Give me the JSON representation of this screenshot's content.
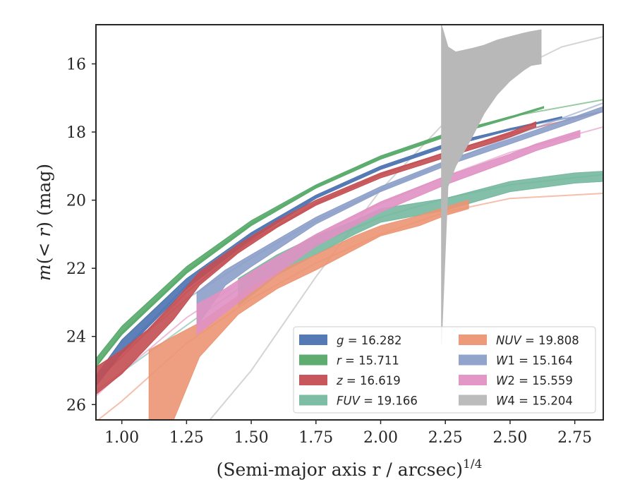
{
  "chart_data": {
    "type": "line",
    "xlabel": "(Semi-major axis r / arcsec)",
    "xlabel_exponent": "1/4",
    "ylabel": "m(<r) (mag)",
    "xlim": [
      0.9,
      2.86
    ],
    "ylim": [
      26.45,
      14.85
    ],
    "y_inverted": true,
    "grid": false,
    "legend_position": "lower right",
    "x_ticks": [
      "1.00",
      "1.25",
      "1.50",
      "1.75",
      "2.00",
      "2.25",
      "2.50",
      "2.75"
    ],
    "y_ticks": [
      "16",
      "18",
      "20",
      "22",
      "24",
      "26"
    ],
    "series": [
      {
        "label": "g = 16.282",
        "var": "g",
        "value": "16.282",
        "italic": true,
        "color": "#4c72b0",
        "band_x": [
          0.9,
          1.0,
          1.25,
          1.5,
          1.75,
          2.0,
          2.25,
          2.5,
          2.7
        ],
        "band_lo": [
          25.15,
          24.1,
          22.3,
          20.95,
          19.85,
          19.0,
          18.35,
          17.9,
          17.55
        ],
        "band_hi": [
          25.45,
          24.5,
          22.6,
          21.15,
          19.95,
          19.1,
          18.45,
          17.95,
          17.58
        ],
        "model_x": [
          0.9,
          1.0,
          1.25,
          1.5,
          1.75,
          2.0,
          2.25,
          2.5,
          2.86
        ],
        "model_y": [
          25.45,
          24.45,
          22.5,
          21.0,
          19.9,
          19.05,
          18.4,
          17.9,
          17.4
        ]
      },
      {
        "label": "r = 15.711",
        "var": "r",
        "value": "15.711",
        "italic": true,
        "color": "#55a868",
        "band_x": [
          0.9,
          1.0,
          1.25,
          1.5,
          1.75,
          2.0,
          2.25,
          2.5,
          2.63
        ],
        "band_lo": [
          24.65,
          23.7,
          21.95,
          20.6,
          19.55,
          18.7,
          18.05,
          17.55,
          17.25
        ],
        "band_hi": [
          24.9,
          23.95,
          22.15,
          20.75,
          19.65,
          18.8,
          18.15,
          17.6,
          17.3
        ],
        "model_x": [
          0.9,
          1.0,
          1.25,
          1.5,
          1.75,
          2.0,
          2.25,
          2.5,
          2.86
        ],
        "model_y": [
          24.9,
          23.9,
          22.1,
          20.7,
          19.6,
          18.75,
          18.1,
          17.55,
          17.05
        ]
      },
      {
        "label": "z = 16.619",
        "var": "z",
        "value": "16.619",
        "italic": true,
        "color": "#c44e52",
        "band_x": [
          0.9,
          1.0,
          1.1,
          1.2,
          1.3,
          1.45,
          1.6,
          1.75,
          2.0,
          2.25,
          2.4,
          2.5,
          2.6
        ],
        "band_lo": [
          24.9,
          24.4,
          23.8,
          23.0,
          22.1,
          21.3,
          20.6,
          20.0,
          19.2,
          18.6,
          18.25,
          18.0,
          17.7
        ],
        "band_hi": [
          25.7,
          25.1,
          24.3,
          23.5,
          22.5,
          21.55,
          20.8,
          20.15,
          19.35,
          18.75,
          18.4,
          18.15,
          17.85
        ],
        "model_x": [
          0.9,
          1.0,
          1.25,
          1.5,
          1.75,
          2.0,
          2.25,
          2.5,
          2.86
        ],
        "model_y": [
          25.3,
          24.6,
          22.7,
          21.2,
          20.1,
          19.25,
          18.6,
          18.05,
          17.4
        ]
      },
      {
        "label": "FUV = 19.166",
        "var": "FUV",
        "value": "19.166",
        "italic": true,
        "color": "#76b8a0",
        "band_x": [
          1.45,
          1.6,
          1.75,
          1.9,
          2.0,
          2.25,
          2.5,
          2.75,
          2.86
        ],
        "band_lo": [
          22.3,
          21.6,
          21.05,
          20.6,
          20.25,
          19.95,
          19.45,
          19.2,
          19.15
        ],
        "band_hi": [
          23.1,
          22.2,
          21.6,
          21.0,
          20.65,
          20.3,
          19.75,
          19.5,
          19.45
        ],
        "model_x": [
          0.9,
          1.1,
          1.3,
          1.5,
          1.75,
          2.0,
          2.25,
          2.5,
          2.86
        ],
        "model_y": [
          25.6,
          24.5,
          23.4,
          22.35,
          21.3,
          20.5,
          19.95,
          19.55,
          19.25
        ]
      },
      {
        "label": "NUV = 19.808",
        "var": "NUV",
        "value": "19.808",
        "italic": true,
        "color": "#ec9573",
        "band_x": [
          1.105,
          1.2,
          1.3,
          1.45,
          1.6,
          1.75,
          1.9,
          2.0,
          2.15,
          2.25,
          2.34
        ],
        "band_lo": [
          24.4,
          24.0,
          23.6,
          22.8,
          22.1,
          21.6,
          21.05,
          20.75,
          20.45,
          20.2,
          20.0
        ],
        "band_hi": [
          26.45,
          26.45,
          24.6,
          23.35,
          22.6,
          22.05,
          21.45,
          21.05,
          20.75,
          20.45,
          20.25
        ],
        "model_x": [
          0.9,
          1.0,
          1.25,
          1.5,
          1.75,
          2.0,
          2.25,
          2.5,
          2.86
        ],
        "model_y": [
          26.5,
          25.9,
          24.2,
          22.9,
          21.85,
          21.0,
          20.35,
          19.95,
          19.8
        ]
      },
      {
        "label": "W1 = 15.164",
        "var": "W",
        "sub": "1",
        "value": "15.164",
        "italic": true,
        "color": "#8c9fc9",
        "band_x": [
          1.29,
          1.4,
          1.5,
          1.75,
          2.0,
          2.25,
          2.5,
          2.75,
          2.86
        ],
        "band_lo": [
          22.7,
          22.05,
          21.6,
          20.5,
          19.6,
          18.85,
          18.2,
          17.55,
          17.25
        ],
        "band_hi": [
          23.7,
          22.5,
          21.95,
          20.7,
          19.75,
          19.0,
          18.35,
          17.7,
          17.4
        ],
        "model_x": [
          0.9,
          1.0,
          1.25,
          1.5,
          1.75,
          2.0,
          2.25,
          2.5,
          2.86
        ],
        "model_y": [
          25.2,
          24.5,
          22.9,
          21.7,
          20.6,
          19.7,
          18.9,
          18.15,
          17.15
        ]
      },
      {
        "label": "W2 = 15.559",
        "var": "W",
        "sub": "2",
        "value": "15.559",
        "italic": true,
        "color": "#e091c3",
        "band_x": [
          1.29,
          1.4,
          1.5,
          1.75,
          2.0,
          2.25,
          2.5,
          2.6,
          2.77
        ],
        "band_lo": [
          23.05,
          22.6,
          22.1,
          21.0,
          20.05,
          19.3,
          18.65,
          18.35,
          17.95
        ],
        "band_hi": [
          23.95,
          23.3,
          22.7,
          21.35,
          20.35,
          19.55,
          18.85,
          18.55,
          18.15
        ],
        "model_x": [
          0.9,
          1.0,
          1.25,
          1.5,
          1.75,
          2.0,
          2.25,
          2.5,
          2.86
        ],
        "model_y": [
          25.75,
          25.05,
          23.45,
          22.2,
          21.05,
          20.1,
          19.3,
          18.6,
          17.85
        ]
      },
      {
        "label": "W4 = 15.204",
        "var": "W",
        "sub": "4",
        "value": "15.204",
        "italic": true,
        "color": "#b8b8b8",
        "band_x": [
          2.235,
          2.26,
          2.29,
          2.35,
          2.4,
          2.45,
          2.5,
          2.55,
          2.58,
          2.62
        ],
        "band_lo": [
          14.85,
          15.5,
          15.65,
          15.55,
          15.45,
          15.3,
          15.2,
          15.1,
          15.05,
          15.0
        ],
        "band_hi": [
          24.25,
          19.6,
          19.0,
          18.2,
          17.45,
          16.9,
          16.5,
          16.2,
          16.05,
          16.0
        ],
        "model_x": [
          1.34,
          1.5,
          1.75,
          2.0,
          2.25,
          2.5,
          2.7,
          2.86
        ],
        "model_y": [
          26.45,
          25.0,
          22.25,
          19.7,
          17.7,
          16.25,
          15.5,
          15.2
        ]
      }
    ]
  }
}
